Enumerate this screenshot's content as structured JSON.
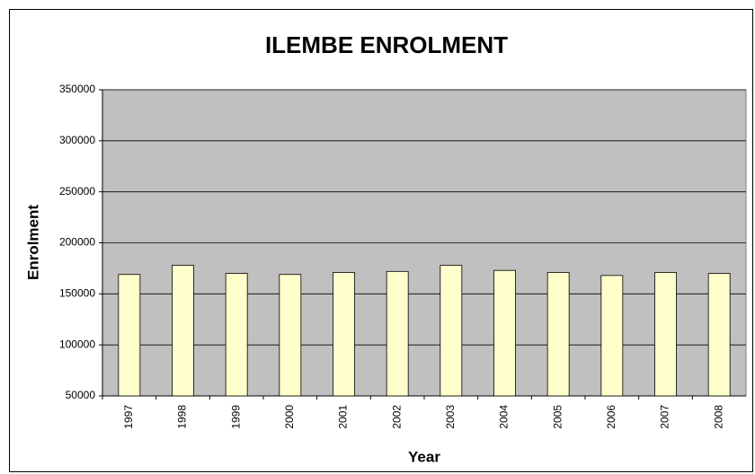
{
  "chart_data": {
    "type": "bar",
    "title": "ILEMBE ENROLMENT",
    "x_label": "Year",
    "y_label": "Enrolment",
    "categories": [
      "1997",
      "1998",
      "1999",
      "2000",
      "2001",
      "2002",
      "2003",
      "2004",
      "2005",
      "2006",
      "2007",
      "2008"
    ],
    "values": [
      169000,
      178000,
      170000,
      169000,
      171000,
      172000,
      178000,
      173000,
      171000,
      168000,
      171000,
      170000
    ],
    "color": "#ffffcc",
    "plot_background": "#c0c0c0",
    "ylim": [
      50000,
      350000
    ],
    "yticks": [
      50000,
      100000,
      150000,
      200000,
      250000,
      300000,
      350000
    ],
    "grid": true
  }
}
